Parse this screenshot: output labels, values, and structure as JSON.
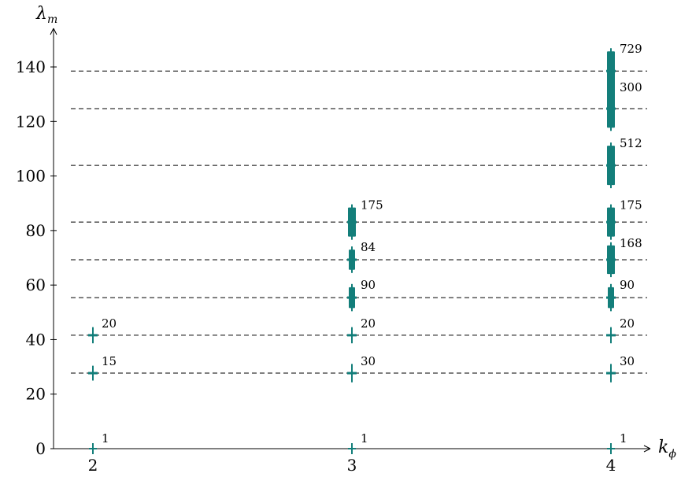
{
  "chart_data": {
    "type": "scatter",
    "xlabel": "k",
    "xlabel_sub": "ϕ",
    "ylabel": "λ",
    "ylabel_sub": "m",
    "xticks": [
      2,
      3,
      4
    ],
    "yticks": [
      0,
      20,
      40,
      60,
      80,
      100,
      120,
      140
    ],
    "ylim": [
      0,
      150
    ],
    "grid": "dashed horizontal lines at eigenvalue levels",
    "levels": [
      27.7,
      41.6,
      55.4,
      69.3,
      83.1,
      103.9,
      124.7,
      138.5
    ],
    "color": "#137e7a",
    "points": [
      {
        "x": 2,
        "y": 0,
        "multiplicity": "1"
      },
      {
        "x": 2,
        "y": 27.7,
        "multiplicity": "15"
      },
      {
        "x": 2,
        "y": 41.6,
        "multiplicity": "20"
      },
      {
        "x": 3,
        "y": 0,
        "multiplicity": "1"
      },
      {
        "x": 3,
        "y": 27.7,
        "multiplicity": "30"
      },
      {
        "x": 3,
        "y": 41.6,
        "multiplicity": "20"
      },
      {
        "x": 3,
        "y": 55.4,
        "multiplicity": "90"
      },
      {
        "x": 3,
        "y": 69.3,
        "multiplicity": "84"
      },
      {
        "x": 3,
        "y": 83.1,
        "multiplicity": "175"
      },
      {
        "x": 4,
        "y": 0,
        "multiplicity": "1"
      },
      {
        "x": 4,
        "y": 27.7,
        "multiplicity": "30"
      },
      {
        "x": 4,
        "y": 41.6,
        "multiplicity": "20"
      },
      {
        "x": 4,
        "y": 55.4,
        "multiplicity": "90"
      },
      {
        "x": 4,
        "y": 69.3,
        "multiplicity": "168"
      },
      {
        "x": 4,
        "y": 83.1,
        "multiplicity": "175"
      },
      {
        "x": 4,
        "y": 103.9,
        "multiplicity": "512"
      },
      {
        "x": 4,
        "y": 124.7,
        "multiplicity": "300"
      },
      {
        "x": 4,
        "y": 138.5,
        "multiplicity": "729"
      }
    ]
  }
}
